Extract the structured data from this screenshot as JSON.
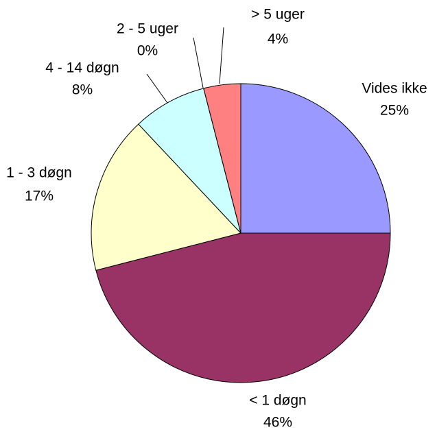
{
  "chart_data": {
    "type": "pie",
    "categories": [
      "Vides ikke",
      "< 1 døgn",
      "1 - 3 døgn",
      "4 - 14 døgn",
      "2 - 5 uger",
      "> 5 uger"
    ],
    "values": [
      25,
      46,
      17,
      8,
      0,
      4
    ],
    "value_labels": [
      "25%",
      "46%",
      "17%",
      "8%",
      "0%",
      "4%"
    ],
    "colors": [
      "#9999ff",
      "#993366",
      "#ffffcc",
      "#ccffff",
      "#ffff99",
      "#ff8080"
    ]
  }
}
